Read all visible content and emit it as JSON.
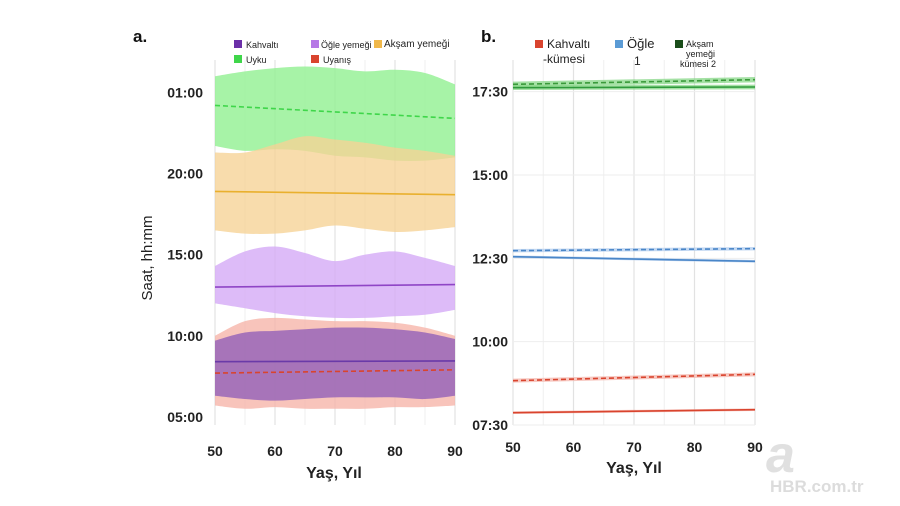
{
  "watermark": {
    "logo": "a",
    "text": "HBR.com.tr"
  },
  "chart_data": [
    {
      "panel_label": "a.",
      "type": "area",
      "xlabel": "Yaş, Yıl",
      "ylabel": "Saat, hh:mm",
      "xlim": [
        50,
        90
      ],
      "ylim": [
        4.5,
        27.0
      ],
      "x_ticks": [
        {
          "value": 50,
          "label": "50"
        },
        {
          "value": 60,
          "label": "60"
        },
        {
          "value": 70,
          "label": "70"
        },
        {
          "value": 80,
          "label": "80"
        },
        {
          "value": 90,
          "label": "90"
        }
      ],
      "y_ticks": [
        {
          "value": 5,
          "label": "05:00"
        },
        {
          "value": 10,
          "label": "10:00"
        },
        {
          "value": 15,
          "label": "15:00"
        },
        {
          "value": 20,
          "label": "20:00"
        },
        {
          "value": 25,
          "label": "01:00"
        }
      ],
      "legend": [
        {
          "label": "Kahvaltı",
          "color": "#6b2fa8"
        },
        {
          "label": "Öğle yemeği",
          "color": "#b678e6"
        },
        {
          "label": "Akşam yemeği",
          "color": "#f0b84a"
        },
        {
          "label": "Uyku",
          "color": "#3fd64a"
        },
        {
          "label": "Uyanış",
          "color": "#d9442e"
        }
      ],
      "x": [
        50,
        55,
        60,
        65,
        70,
        75,
        80,
        85,
        90
      ],
      "series": [
        {
          "name": "Uyku",
          "color": "#3fd64a",
          "fill": "#8ef08e",
          "line": "dashed",
          "lower": [
            21.7,
            21.4,
            21.5,
            21.4,
            21.1,
            21.0,
            20.8,
            20.8,
            21.0
          ],
          "mean": [
            24.2,
            24.1,
            24.0,
            23.9,
            23.8,
            23.7,
            23.6,
            23.5,
            23.4
          ],
          "upper": [
            26.0,
            26.3,
            26.5,
            26.6,
            26.5,
            26.3,
            26.4,
            26.2,
            25.5
          ]
        },
        {
          "name": "Akşam yemeği",
          "color": "#e9b02e",
          "fill": "#f6d295",
          "line": "solid",
          "lower": [
            16.5,
            16.3,
            16.3,
            16.5,
            16.8,
            16.6,
            16.4,
            16.5,
            16.7
          ],
          "mean": [
            18.9,
            18.88,
            18.85,
            18.82,
            18.8,
            18.77,
            18.74,
            18.71,
            18.7
          ],
          "upper": [
            21.3,
            21.3,
            21.8,
            22.3,
            22.1,
            21.9,
            21.6,
            21.4,
            21.1
          ]
        },
        {
          "name": "Öğle yemeği",
          "color": "#8f45c6",
          "fill": "#d3a8f6",
          "line": "solid",
          "lower": [
            12.0,
            11.7,
            11.4,
            11.2,
            11.1,
            11.1,
            11.2,
            11.3,
            11.6
          ],
          "mean": [
            13.0,
            13.02,
            13.04,
            13.06,
            13.08,
            13.1,
            13.12,
            13.14,
            13.16
          ],
          "upper": [
            14.3,
            15.2,
            15.5,
            15.1,
            14.6,
            15.0,
            15.2,
            14.8,
            14.3
          ]
        },
        {
          "name": "Uyanış",
          "color": "#d9442e",
          "fill": "#f6b3a8",
          "line": "dashed",
          "lower": [
            5.7,
            5.5,
            5.6,
            5.5,
            5.5,
            5.5,
            5.6,
            5.6,
            5.7
          ],
          "mean": [
            7.7,
            7.72,
            7.74,
            7.77,
            7.8,
            7.82,
            7.84,
            7.86,
            7.9
          ],
          "upper": [
            10.0,
            10.9,
            11.1,
            11.0,
            10.9,
            10.9,
            10.8,
            10.5,
            10.0
          ]
        },
        {
          "name": "Kahvaltı",
          "color": "#6a3aa8",
          "fill": "#8f5db8",
          "line": "solid",
          "lower": [
            6.3,
            6.1,
            6.0,
            6.1,
            6.2,
            6.2,
            6.2,
            6.1,
            6.3
          ],
          "mean": [
            8.4,
            8.42,
            8.43,
            8.44,
            8.45,
            8.45,
            8.45,
            8.45,
            8.45
          ],
          "upper": [
            9.7,
            10.2,
            10.3,
            10.4,
            10.5,
            10.5,
            10.4,
            10.2,
            9.8
          ]
        }
      ]
    },
    {
      "panel_label": "b.",
      "type": "line",
      "xlabel": "Yaş, Yıl",
      "ylabel": "",
      "xlim": [
        50,
        90
      ],
      "ylim": [
        7.5,
        18.45
      ],
      "x_ticks": [
        {
          "value": 50,
          "label": "50"
        },
        {
          "value": 60,
          "label": "60"
        },
        {
          "value": 70,
          "label": "70"
        },
        {
          "value": 80,
          "label": "80"
        },
        {
          "value": 90,
          "label": "90"
        }
      ],
      "y_ticks": [
        {
          "value": 7.5,
          "label": "07:30"
        },
        {
          "value": 10,
          "label": "10:00"
        },
        {
          "value": 12.5,
          "label": "12:30"
        },
        {
          "value": 15,
          "label": "15:00"
        },
        {
          "value": 17.5,
          "label": "17:30"
        }
      ],
      "legend": [
        {
          "label": "Kahvaltı",
          "label2": "-kümesi",
          "color": "#d9442e"
        },
        {
          "label": "Öğle",
          "label2": "1",
          "color": "#5b9bd5"
        },
        {
          "label": "Akşam",
          "label2": "yemeği",
          "label3": "kümesi 2",
          "color": "#1a4d1a"
        }
      ],
      "series": [
        {
          "name": "Akşam yemeği dashed",
          "color": "#3a9a3a",
          "band": "#7fd47f",
          "dashed": true,
          "x": [
            50,
            90
          ],
          "y": [
            17.72,
            17.86
          ],
          "band_half": 0.08
        },
        {
          "name": "Akşam yemeği solid",
          "color": "#2e9a3a",
          "band": "#7fd47f",
          "dashed": false,
          "x": [
            50,
            90
          ],
          "y": [
            17.62,
            17.64
          ],
          "band_half": 0.07
        },
        {
          "name": "Öğle dashed",
          "color": "#4a86c8",
          "band": "#a9c8ec",
          "dashed": true,
          "x": [
            50,
            90
          ],
          "y": [
            12.73,
            12.79
          ],
          "band_half": 0.05
        },
        {
          "name": "Öğle solid",
          "color": "#4a86c8",
          "band": "#a9c8ec",
          "dashed": false,
          "x": [
            50,
            90
          ],
          "y": [
            12.55,
            12.41
          ],
          "band_half": 0.04
        },
        {
          "name": "Kahvaltı dashed",
          "color": "#d9442e",
          "band": "#f3b1a7",
          "dashed": true,
          "x": [
            50,
            90
          ],
          "y": [
            8.83,
            9.02
          ],
          "band_half": 0.06
        },
        {
          "name": "Kahvaltı solid",
          "color": "#d9442e",
          "band": "#f3b1a7",
          "dashed": false,
          "x": [
            50,
            90
          ],
          "y": [
            7.87,
            7.96
          ],
          "band_half": 0.04
        }
      ]
    }
  ]
}
